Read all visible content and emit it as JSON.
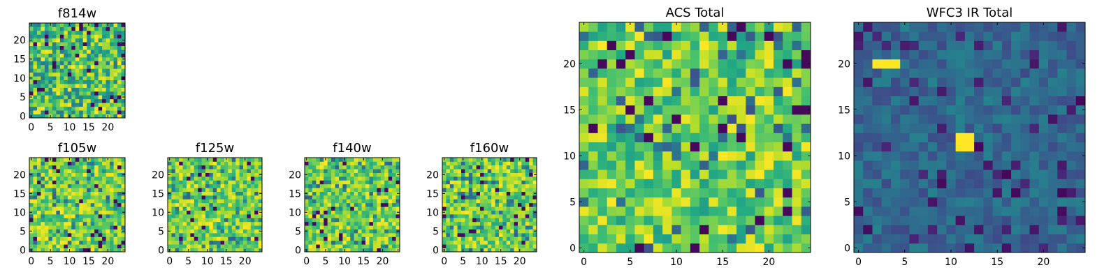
{
  "chart_data": [
    {
      "type": "heatmap",
      "title": "f814w",
      "size": 25,
      "ticks": [
        0,
        5,
        10,
        15,
        20
      ],
      "colormap": "viridis",
      "xlabel": "",
      "ylabel": "",
      "xlim": [
        -0.5,
        24.5
      ],
      "ylim": [
        -0.5,
        24.5
      ]
    },
    {
      "type": "heatmap",
      "title": "f105w",
      "size": 25,
      "ticks": [
        0,
        5,
        10,
        15,
        20
      ],
      "colormap": "viridis",
      "xlabel": "",
      "ylabel": "",
      "xlim": [
        -0.5,
        24.5
      ],
      "ylim": [
        -0.5,
        24.5
      ]
    },
    {
      "type": "heatmap",
      "title": "f125w",
      "size": 25,
      "ticks": [
        0,
        5,
        10,
        15,
        20
      ],
      "colormap": "viridis",
      "xlabel": "",
      "ylabel": "",
      "xlim": [
        -0.5,
        24.5
      ],
      "ylim": [
        -0.5,
        24.5
      ]
    },
    {
      "type": "heatmap",
      "title": "f140w",
      "size": 25,
      "ticks": [
        0,
        5,
        10,
        15,
        20
      ],
      "colormap": "viridis",
      "xlabel": "",
      "ylabel": "",
      "xlim": [
        -0.5,
        24.5
      ],
      "ylim": [
        -0.5,
        24.5
      ]
    },
    {
      "type": "heatmap",
      "title": "f160w",
      "size": 25,
      "ticks": [
        0,
        5,
        10,
        15,
        20
      ],
      "colormap": "viridis",
      "xlabel": "",
      "ylabel": "",
      "xlim": [
        -0.5,
        24.5
      ],
      "ylim": [
        -0.5,
        24.5
      ]
    },
    {
      "type": "heatmap",
      "title": "ACS Total",
      "size": 25,
      "ticks": [
        0,
        5,
        10,
        15,
        20
      ],
      "colormap": "viridis",
      "xlabel": "",
      "ylabel": "",
      "xlim": [
        -0.5,
        24.5
      ],
      "ylim": [
        -0.5,
        24.5
      ]
    },
    {
      "type": "heatmap",
      "title": "WFC3 IR Total",
      "size": 25,
      "ticks": [
        0,
        5,
        10,
        15,
        20
      ],
      "colormap": "viridis",
      "xlabel": "",
      "ylabel": "",
      "xlim": [
        -0.5,
        24.5
      ],
      "ylim": [
        -0.5,
        24.5
      ]
    }
  ]
}
